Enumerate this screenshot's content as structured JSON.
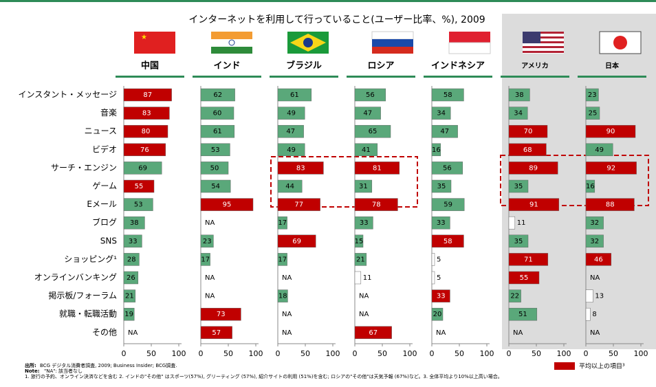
{
  "chart_data": {
    "type": "bar",
    "orientation": "horizontal",
    "title": "インターネットを利用して行っていること(ユーザー比率、%), 2009",
    "categories": [
      "インスタント・メッセージ",
      "音楽",
      "ニュース",
      "ビデオ",
      "サーチ・エンジン",
      "ゲーム",
      "Eメール",
      "ブログ",
      "SNS",
      "ショッピング¹",
      "オンラインバンキング",
      "掲示板/フォーラム",
      "就職・転職活動",
      "その他"
    ],
    "series": [
      {
        "name": "中国",
        "values": [
          87,
          83,
          80,
          76,
          69,
          55,
          53,
          38,
          33,
          28,
          26,
          21,
          19,
          null
        ],
        "colors": [
          "#c00000",
          "#c00000",
          "#c00000",
          "#c00000",
          "#5aa87a",
          "#c00000",
          "#5aa87a",
          "#5aa87a",
          "#5aa87a",
          "#5aa87a",
          "#5aa87a",
          "#5aa87a",
          "#5aa87a",
          "#5aa87a"
        ]
      },
      {
        "name": "インド",
        "values": [
          62,
          60,
          61,
          53,
          50,
          54,
          95,
          null,
          23,
          17,
          null,
          null,
          73,
          57
        ],
        "colors": [
          "#5aa87a",
          "#5aa87a",
          "#5aa87a",
          "#5aa87a",
          "#5aa87a",
          "#5aa87a",
          "#c00000",
          "#5aa87a",
          "#5aa87a",
          "#5aa87a",
          "#5aa87a",
          "#5aa87a",
          "#c00000",
          "#c00000"
        ]
      },
      {
        "name": "ブラジル",
        "values": [
          61,
          49,
          47,
          49,
          83,
          44,
          77,
          17,
          69,
          17,
          null,
          18,
          null,
          null
        ],
        "colors": [
          "#5aa87a",
          "#5aa87a",
          "#5aa87a",
          "#5aa87a",
          "#c00000",
          "#5aa87a",
          "#c00000",
          "#5aa87a",
          "#c00000",
          "#5aa87a",
          "#5aa87a",
          "#5aa87a",
          "#5aa87a",
          "#5aa87a"
        ]
      },
      {
        "name": "ロシア",
        "values": [
          56,
          47,
          65,
          41,
          81,
          31,
          78,
          33,
          15,
          21,
          11,
          null,
          null,
          67
        ],
        "colors": [
          "#5aa87a",
          "#5aa87a",
          "#5aa87a",
          "#5aa87a",
          "#c00000",
          "#5aa87a",
          "#c00000",
          "#5aa87a",
          "#5aa87a",
          "#5aa87a",
          "#ffffff",
          "#5aa87a",
          "#5aa87a",
          "#c00000"
        ]
      },
      {
        "name": "インドネシア",
        "values": [
          58,
          34,
          47,
          16,
          56,
          35,
          59,
          33,
          58,
          5,
          5,
          33,
          20,
          null
        ],
        "colors": [
          "#5aa87a",
          "#5aa87a",
          "#5aa87a",
          "#5aa87a",
          "#5aa87a",
          "#5aa87a",
          "#5aa87a",
          "#5aa87a",
          "#c00000",
          "#ffffff",
          "#ffffff",
          "#c00000",
          "#5aa87a",
          "#5aa87a"
        ]
      },
      {
        "name": "アメリカ",
        "values": [
          38,
          34,
          70,
          68,
          89,
          35,
          91,
          11,
          35,
          71,
          55,
          22,
          51,
          null
        ],
        "colors": [
          "#5aa87a",
          "#5aa87a",
          "#c00000",
          "#c00000",
          "#c00000",
          "#5aa87a",
          "#c00000",
          "#ffffff",
          "#5aa87a",
          "#c00000",
          "#c00000",
          "#5aa87a",
          "#5aa87a",
          "#5aa87a"
        ]
      },
      {
        "name": "日本",
        "values": [
          23,
          25,
          90,
          49,
          92,
          16,
          88,
          32,
          32,
          46,
          null,
          13,
          8,
          null
        ],
        "colors": [
          "#5aa87a",
          "#5aa87a",
          "#c00000",
          "#5aa87a",
          "#c00000",
          "#5aa87a",
          "#c00000",
          "#5aa87a",
          "#5aa87a",
          "#c00000",
          "#5aa87a",
          "#ffffff",
          "#ffffff",
          "#5aa87a"
        ]
      }
    ],
    "na_label": "NA",
    "xlim": [
      0,
      100
    ],
    "xticks": [
      0,
      50,
      100
    ],
    "legend": {
      "label": "平均以上の項目³",
      "color": "#c00000"
    },
    "notes": [
      {
        "label": "出所:",
        "text": "BCG デジタル消費者調査, 2009; Business Insider; BCG調査."
      },
      {
        "label": "Note:",
        "text": "\"NA\": 該当者なし"
      }
    ],
    "footnote": "1. 旅行の予約、オンライン決済などを含む 2. インドの\"その他\" はスポーツ(57%), グリーティング (57%), 紹介サイトの利用 (51%)を含む; ロシアの\"その他\"は天気予報 (67%)など。3. 全体平均より10%以上高い場合。"
  }
}
